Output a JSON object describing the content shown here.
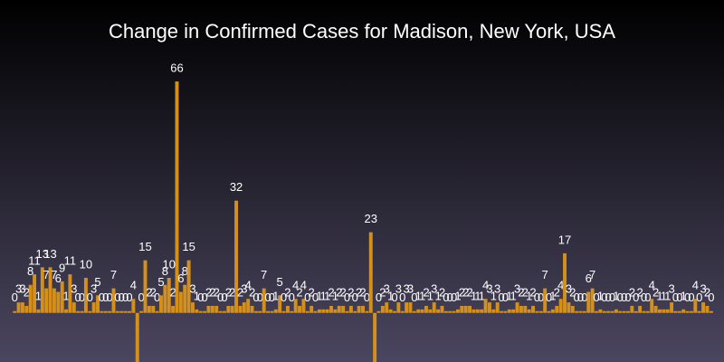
{
  "chart_data": {
    "type": "bar",
    "title": "Change in Confirmed Cases for Madison, New York, USA",
    "color": "#d4901a",
    "ylim": [
      -14,
      66
    ],
    "values": [
      0,
      3,
      3,
      2,
      8,
      11,
      1,
      13,
      7,
      13,
      7,
      6,
      9,
      1,
      11,
      3,
      0,
      0,
      10,
      0,
      3,
      5,
      0,
      0,
      0,
      7,
      0,
      0,
      0,
      0,
      4,
      -14,
      0,
      15,
      2,
      2,
      0,
      5,
      8,
      10,
      2,
      66,
      6,
      8,
      15,
      3,
      1,
      0,
      0,
      2,
      2,
      2,
      0,
      0,
      2,
      2,
      32,
      2,
      3,
      4,
      2,
      0,
      0,
      7,
      0,
      0,
      1,
      5,
      0,
      2,
      0,
      4,
      2,
      4,
      0,
      2,
      0,
      1,
      1,
      1,
      2,
      1,
      2,
      2,
      0,
      2,
      0,
      2,
      2,
      0,
      23,
      -14,
      0,
      2,
      3,
      1,
      0,
      3,
      0,
      3,
      3,
      0,
      1,
      1,
      2,
      1,
      3,
      1,
      2,
      0,
      0,
      0,
      1,
      2,
      2,
      2,
      1,
      1,
      1,
      4,
      3,
      1,
      3,
      0,
      0,
      1,
      1,
      3,
      2,
      2,
      1,
      2,
      0,
      0,
      7,
      0,
      1,
      2,
      4,
      17,
      3,
      2,
      0,
      0,
      0,
      6,
      7,
      0,
      1,
      0,
      0,
      0,
      1,
      0,
      0,
      0,
      2,
      0,
      2,
      0,
      0,
      4,
      2,
      1,
      1,
      1,
      3,
      0,
      0,
      1,
      0,
      0,
      4,
      0,
      3,
      2,
      0
    ]
  }
}
